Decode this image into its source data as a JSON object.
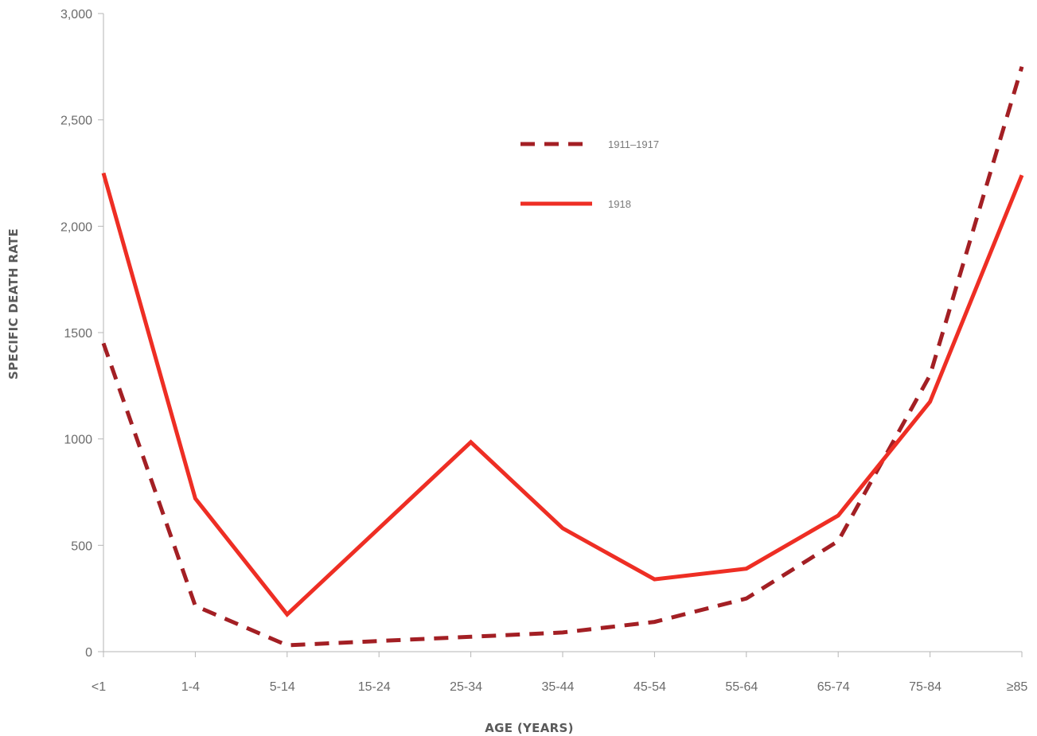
{
  "chart_data": {
    "type": "line",
    "categories": [
      "<1",
      "1-4",
      "5-14",
      "15-24",
      "25-34",
      "35-44",
      "45-54",
      "55-64",
      "65-74",
      "75-84",
      "≥85"
    ],
    "series": [
      {
        "name": "1911–1917",
        "style": "dashed",
        "color": "#a31f24",
        "values": [
          1450,
          215,
          30,
          50,
          70,
          90,
          140,
          250,
          520,
          1300,
          2750
        ]
      },
      {
        "name": "1918",
        "style": "solid",
        "color": "#ee2e24",
        "values": [
          2250,
          720,
          175,
          580,
          985,
          580,
          340,
          390,
          640,
          1175,
          2240
        ]
      }
    ],
    "ylabel": "SPECIFIC DEATH RATE",
    "xlabel": "AGE (YEARS)",
    "ylim": [
      0,
      3000
    ],
    "y_ticks": [
      {
        "value": 0,
        "label": "0"
      },
      {
        "value": 500,
        "label": "500"
      },
      {
        "value": 1000,
        "label": "1000"
      },
      {
        "value": 1500,
        "label": "1500"
      },
      {
        "value": 2000,
        "label": "2,000"
      },
      {
        "value": 2500,
        "label": "2,500"
      },
      {
        "value": 3000,
        "label": "3,000"
      }
    ],
    "grid": false,
    "legend_position": "top-center"
  }
}
